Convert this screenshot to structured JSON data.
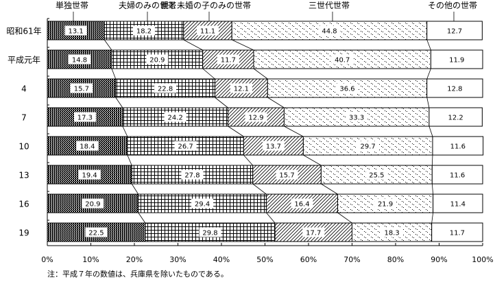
{
  "chart_data": {
    "type": "bar",
    "orientation": "horizontal",
    "stacked": "100%",
    "categories": [
      "昭和61年",
      "平成元年",
      "4",
      "7",
      "10",
      "13",
      "16",
      "19"
    ],
    "series": [
      {
        "name": "単独世帯",
        "values": [
          13.1,
          14.8,
          15.7,
          17.3,
          18.4,
          19.4,
          20.9,
          22.5
        ],
        "pattern": "dense-dots"
      },
      {
        "name": "夫婦のみの世帯",
        "values": [
          18.2,
          20.9,
          22.8,
          24.2,
          26.7,
          27.8,
          29.4,
          29.8
        ],
        "pattern": "grid"
      },
      {
        "name": "親と未婚の子のみの世帯",
        "values": [
          11.1,
          11.7,
          12.1,
          12.9,
          13.7,
          15.7,
          16.4,
          17.7
        ],
        "pattern": "diagonal"
      },
      {
        "name": "三世代世帯",
        "values": [
          44.8,
          40.7,
          36.6,
          33.3,
          29.7,
          25.5,
          21.9,
          18.3
        ],
        "pattern": "sparse-dots"
      },
      {
        "name": "その他の世帯",
        "values": [
          12.7,
          11.9,
          12.8,
          12.2,
          11.6,
          11.6,
          11.4,
          11.7
        ],
        "pattern": "white"
      }
    ],
    "xlim": [
      0,
      100
    ],
    "xticks": [
      "0%",
      "10%",
      "20%",
      "30%",
      "40%",
      "50%",
      "60%",
      "70%",
      "80%",
      "90%",
      "100%"
    ],
    "legend": "top",
    "grid": false,
    "note": "注：平成７年の数値は、兵庫県を除いたものである。"
  }
}
